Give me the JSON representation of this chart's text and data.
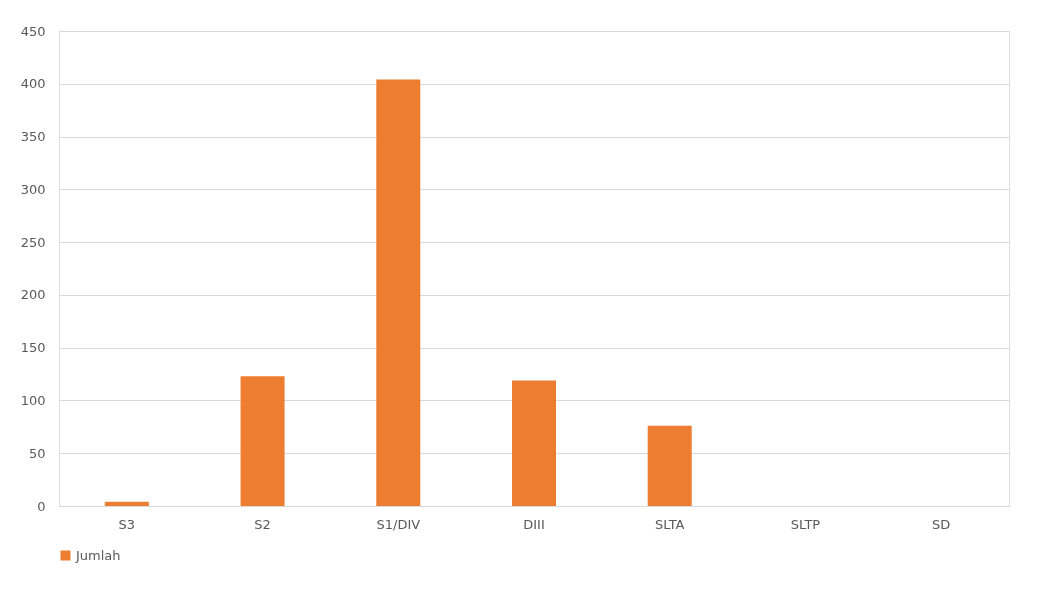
{
  "chart_data": {
    "type": "bar",
    "categories": [
      "S3",
      "S2",
      "S1/DIV",
      "DIII",
      "SLTA",
      "SLTP",
      "SD"
    ],
    "series": [
      {
        "name": "Jumlah",
        "color": "#ed7d31",
        "values": [
          4,
          123,
          404,
          119,
          76,
          0,
          0
        ]
      }
    ],
    "ylim": [
      0,
      450
    ],
    "yticks": [
      0,
      50,
      100,
      150,
      200,
      250,
      300,
      350,
      400,
      450
    ],
    "grid": "y",
    "legend": "bottom"
  }
}
